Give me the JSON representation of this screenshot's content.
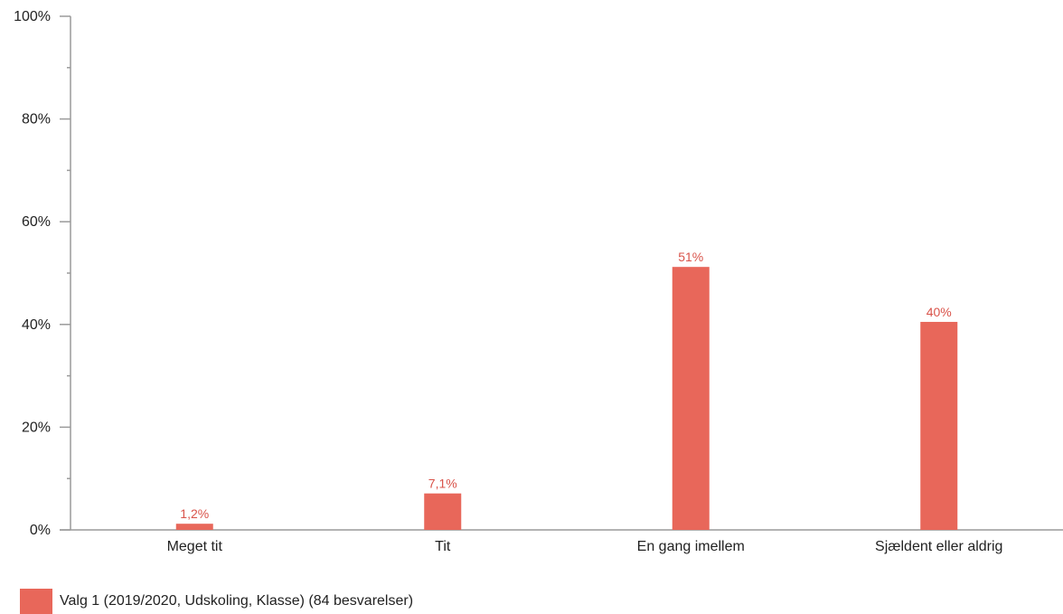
{
  "chart_data": {
    "type": "bar",
    "categories": [
      "Meget tit",
      "Tit",
      "En gang imellem",
      "Sjældent eller aldrig"
    ],
    "series": [
      {
        "name": "Valg 1 (2019/2020, Udskoling, Klasse) (84 besvarelser)",
        "values": [
          1.2,
          7.1,
          51.2,
          40.5
        ],
        "labels": [
          "1,2%",
          "7,1%",
          "51%",
          "40%"
        ]
      }
    ],
    "yticks": [
      "0%",
      "20%",
      "40%",
      "60%",
      "80%",
      "100%"
    ],
    "ylim": [
      0,
      100
    ],
    "grid": false,
    "legend": "bottom-left",
    "title": "",
    "xlabel": "",
    "ylabel": ""
  },
  "colors": {
    "bar": "#e8675a",
    "axis": "#9a9a9a",
    "text": "#222222",
    "data_label": "#d9534a"
  }
}
